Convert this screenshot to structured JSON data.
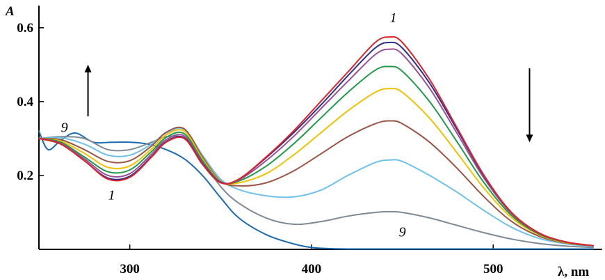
{
  "chart_data": {
    "type": "line",
    "xlabel": "λ, nm",
    "ylabel": "A",
    "xlim": [
      250,
      560
    ],
    "ylim": [
      0,
      0.66
    ],
    "x_ticks": [
      300,
      400,
      500
    ],
    "y_ticks": [
      0.2,
      0.4,
      0.6
    ],
    "x_tick_labels": [
      "300",
      "400",
      "500"
    ],
    "y_tick_labels": [
      "0.2",
      "0.4",
      "0.6"
    ],
    "grid": false,
    "annotations": [
      {
        "text": "1",
        "x": 445,
        "y": 0.615
      },
      {
        "text": "9",
        "x": 264,
        "y": 0.318
      },
      {
        "text": "1",
        "x": 290,
        "y": 0.135
      },
      {
        "text": "9",
        "x": 450,
        "y": 0.035
      }
    ],
    "arrows": [
      {
        "direction": "up",
        "x": 277,
        "y_from": 0.36,
        "y_to": 0.5
      },
      {
        "direction": "down",
        "x": 520,
        "y_from": 0.49,
        "y_to": 0.29
      }
    ],
    "series": [
      {
        "color": "#e0242b",
        "x": [
          250,
          262,
          275,
          288,
          300,
          312,
          320,
          330,
          340,
          350,
          360,
          375,
          390,
          405,
          420,
          435,
          443,
          450,
          465,
          480,
          495,
          510,
          525,
          540,
          555
        ],
        "y": [
          0.3,
          0.285,
          0.24,
          0.19,
          0.195,
          0.25,
          0.29,
          0.3,
          0.23,
          0.18,
          0.19,
          0.25,
          0.32,
          0.4,
          0.48,
          0.56,
          0.575,
          0.56,
          0.46,
          0.33,
          0.2,
          0.1,
          0.045,
          0.02,
          0.01
        ]
      },
      {
        "color": "#2d2f8c",
        "x": [
          250,
          262,
          275,
          288,
          300,
          312,
          320,
          330,
          340,
          350,
          360,
          375,
          390,
          405,
          420,
          435,
          443,
          450,
          465,
          480,
          495,
          510,
          525,
          540,
          555
        ],
        "y": [
          0.3,
          0.285,
          0.24,
          0.193,
          0.198,
          0.252,
          0.292,
          0.302,
          0.232,
          0.181,
          0.19,
          0.248,
          0.315,
          0.39,
          0.47,
          0.545,
          0.56,
          0.545,
          0.45,
          0.325,
          0.198,
          0.1,
          0.045,
          0.02,
          0.01
        ]
      },
      {
        "color": "#9b4f96",
        "x": [
          250,
          262,
          275,
          288,
          300,
          312,
          320,
          330,
          340,
          350,
          360,
          375,
          390,
          405,
          420,
          435,
          443,
          450,
          465,
          480,
          495,
          510,
          525,
          540,
          555
        ],
        "y": [
          0.3,
          0.287,
          0.245,
          0.2,
          0.205,
          0.258,
          0.297,
          0.307,
          0.235,
          0.182,
          0.188,
          0.24,
          0.305,
          0.38,
          0.455,
          0.527,
          0.542,
          0.528,
          0.436,
          0.315,
          0.192,
          0.097,
          0.044,
          0.02,
          0.01
        ]
      },
      {
        "color": "#1f9a49",
        "x": [
          250,
          262,
          275,
          288,
          300,
          312,
          320,
          330,
          340,
          350,
          360,
          375,
          390,
          405,
          420,
          435,
          443,
          450,
          465,
          480,
          495,
          510,
          525,
          540,
          555
        ],
        "y": [
          0.3,
          0.29,
          0.25,
          0.21,
          0.215,
          0.265,
          0.303,
          0.313,
          0.24,
          0.183,
          0.185,
          0.225,
          0.285,
          0.355,
          0.425,
          0.485,
          0.495,
          0.482,
          0.4,
          0.292,
          0.18,
          0.092,
          0.042,
          0.019,
          0.01
        ]
      },
      {
        "color": "#f2c100",
        "x": [
          250,
          262,
          275,
          288,
          300,
          312,
          320,
          330,
          340,
          350,
          360,
          375,
          390,
          405,
          420,
          435,
          443,
          450,
          465,
          480,
          495,
          510,
          525,
          540,
          555
        ],
        "y": [
          0.3,
          0.293,
          0.26,
          0.222,
          0.226,
          0.272,
          0.31,
          0.32,
          0.245,
          0.184,
          0.18,
          0.205,
          0.255,
          0.315,
          0.375,
          0.425,
          0.435,
          0.425,
          0.355,
          0.262,
          0.165,
          0.086,
          0.04,
          0.018,
          0.01
        ]
      },
      {
        "color": "#9b5545",
        "x": [
          250,
          262,
          275,
          288,
          300,
          312,
          320,
          330,
          340,
          350,
          360,
          375,
          390,
          405,
          420,
          435,
          443,
          450,
          465,
          480,
          495,
          510,
          525,
          540,
          555
        ],
        "y": [
          0.3,
          0.297,
          0.27,
          0.238,
          0.24,
          0.28,
          0.317,
          0.326,
          0.25,
          0.185,
          0.172,
          0.18,
          0.212,
          0.258,
          0.305,
          0.34,
          0.348,
          0.34,
          0.29,
          0.22,
          0.142,
          0.076,
          0.036,
          0.017,
          0.01
        ]
      },
      {
        "color": "#6ec2ea",
        "x": [
          250,
          262,
          275,
          288,
          300,
          312,
          320,
          330,
          340,
          350,
          360,
          375,
          390,
          405,
          420,
          435,
          443,
          450,
          465,
          480,
          495,
          510,
          525,
          540,
          555
        ],
        "y": [
          0.3,
          0.302,
          0.285,
          0.255,
          0.255,
          0.285,
          0.315,
          0.325,
          0.255,
          0.19,
          0.162,
          0.145,
          0.142,
          0.16,
          0.2,
          0.235,
          0.242,
          0.238,
          0.2,
          0.155,
          0.105,
          0.06,
          0.03,
          0.015,
          0.008
        ]
      },
      {
        "color": "#7c8a96",
        "x": [
          250,
          262,
          275,
          288,
          300,
          312,
          320,
          330,
          340,
          350,
          360,
          375,
          390,
          405,
          420,
          435,
          443,
          450,
          465,
          480,
          495,
          510,
          525,
          540,
          555
        ],
        "y": [
          0.3,
          0.305,
          0.3,
          0.27,
          0.27,
          0.29,
          0.305,
          0.3,
          0.24,
          0.17,
          0.125,
          0.085,
          0.068,
          0.075,
          0.09,
          0.1,
          0.102,
          0.1,
          0.085,
          0.065,
          0.045,
          0.028,
          0.016,
          0.009,
          0.005
        ]
      },
      {
        "color": "#1b6bb0",
        "x": [
          250,
          255,
          262,
          270,
          280,
          290,
          300,
          310,
          320,
          330,
          340,
          350,
          360,
          375,
          390,
          400,
          410,
          420,
          440,
          460,
          480,
          500,
          520,
          540,
          555
        ],
        "y": [
          0.32,
          0.27,
          0.295,
          0.315,
          0.29,
          0.29,
          0.29,
          0.285,
          0.27,
          0.245,
          0.2,
          0.14,
          0.085,
          0.04,
          0.015,
          0.005,
          0.002,
          0.001,
          0.001,
          0.001,
          0.001,
          0.001,
          0.001,
          0.001,
          0.001
        ]
      }
    ]
  }
}
